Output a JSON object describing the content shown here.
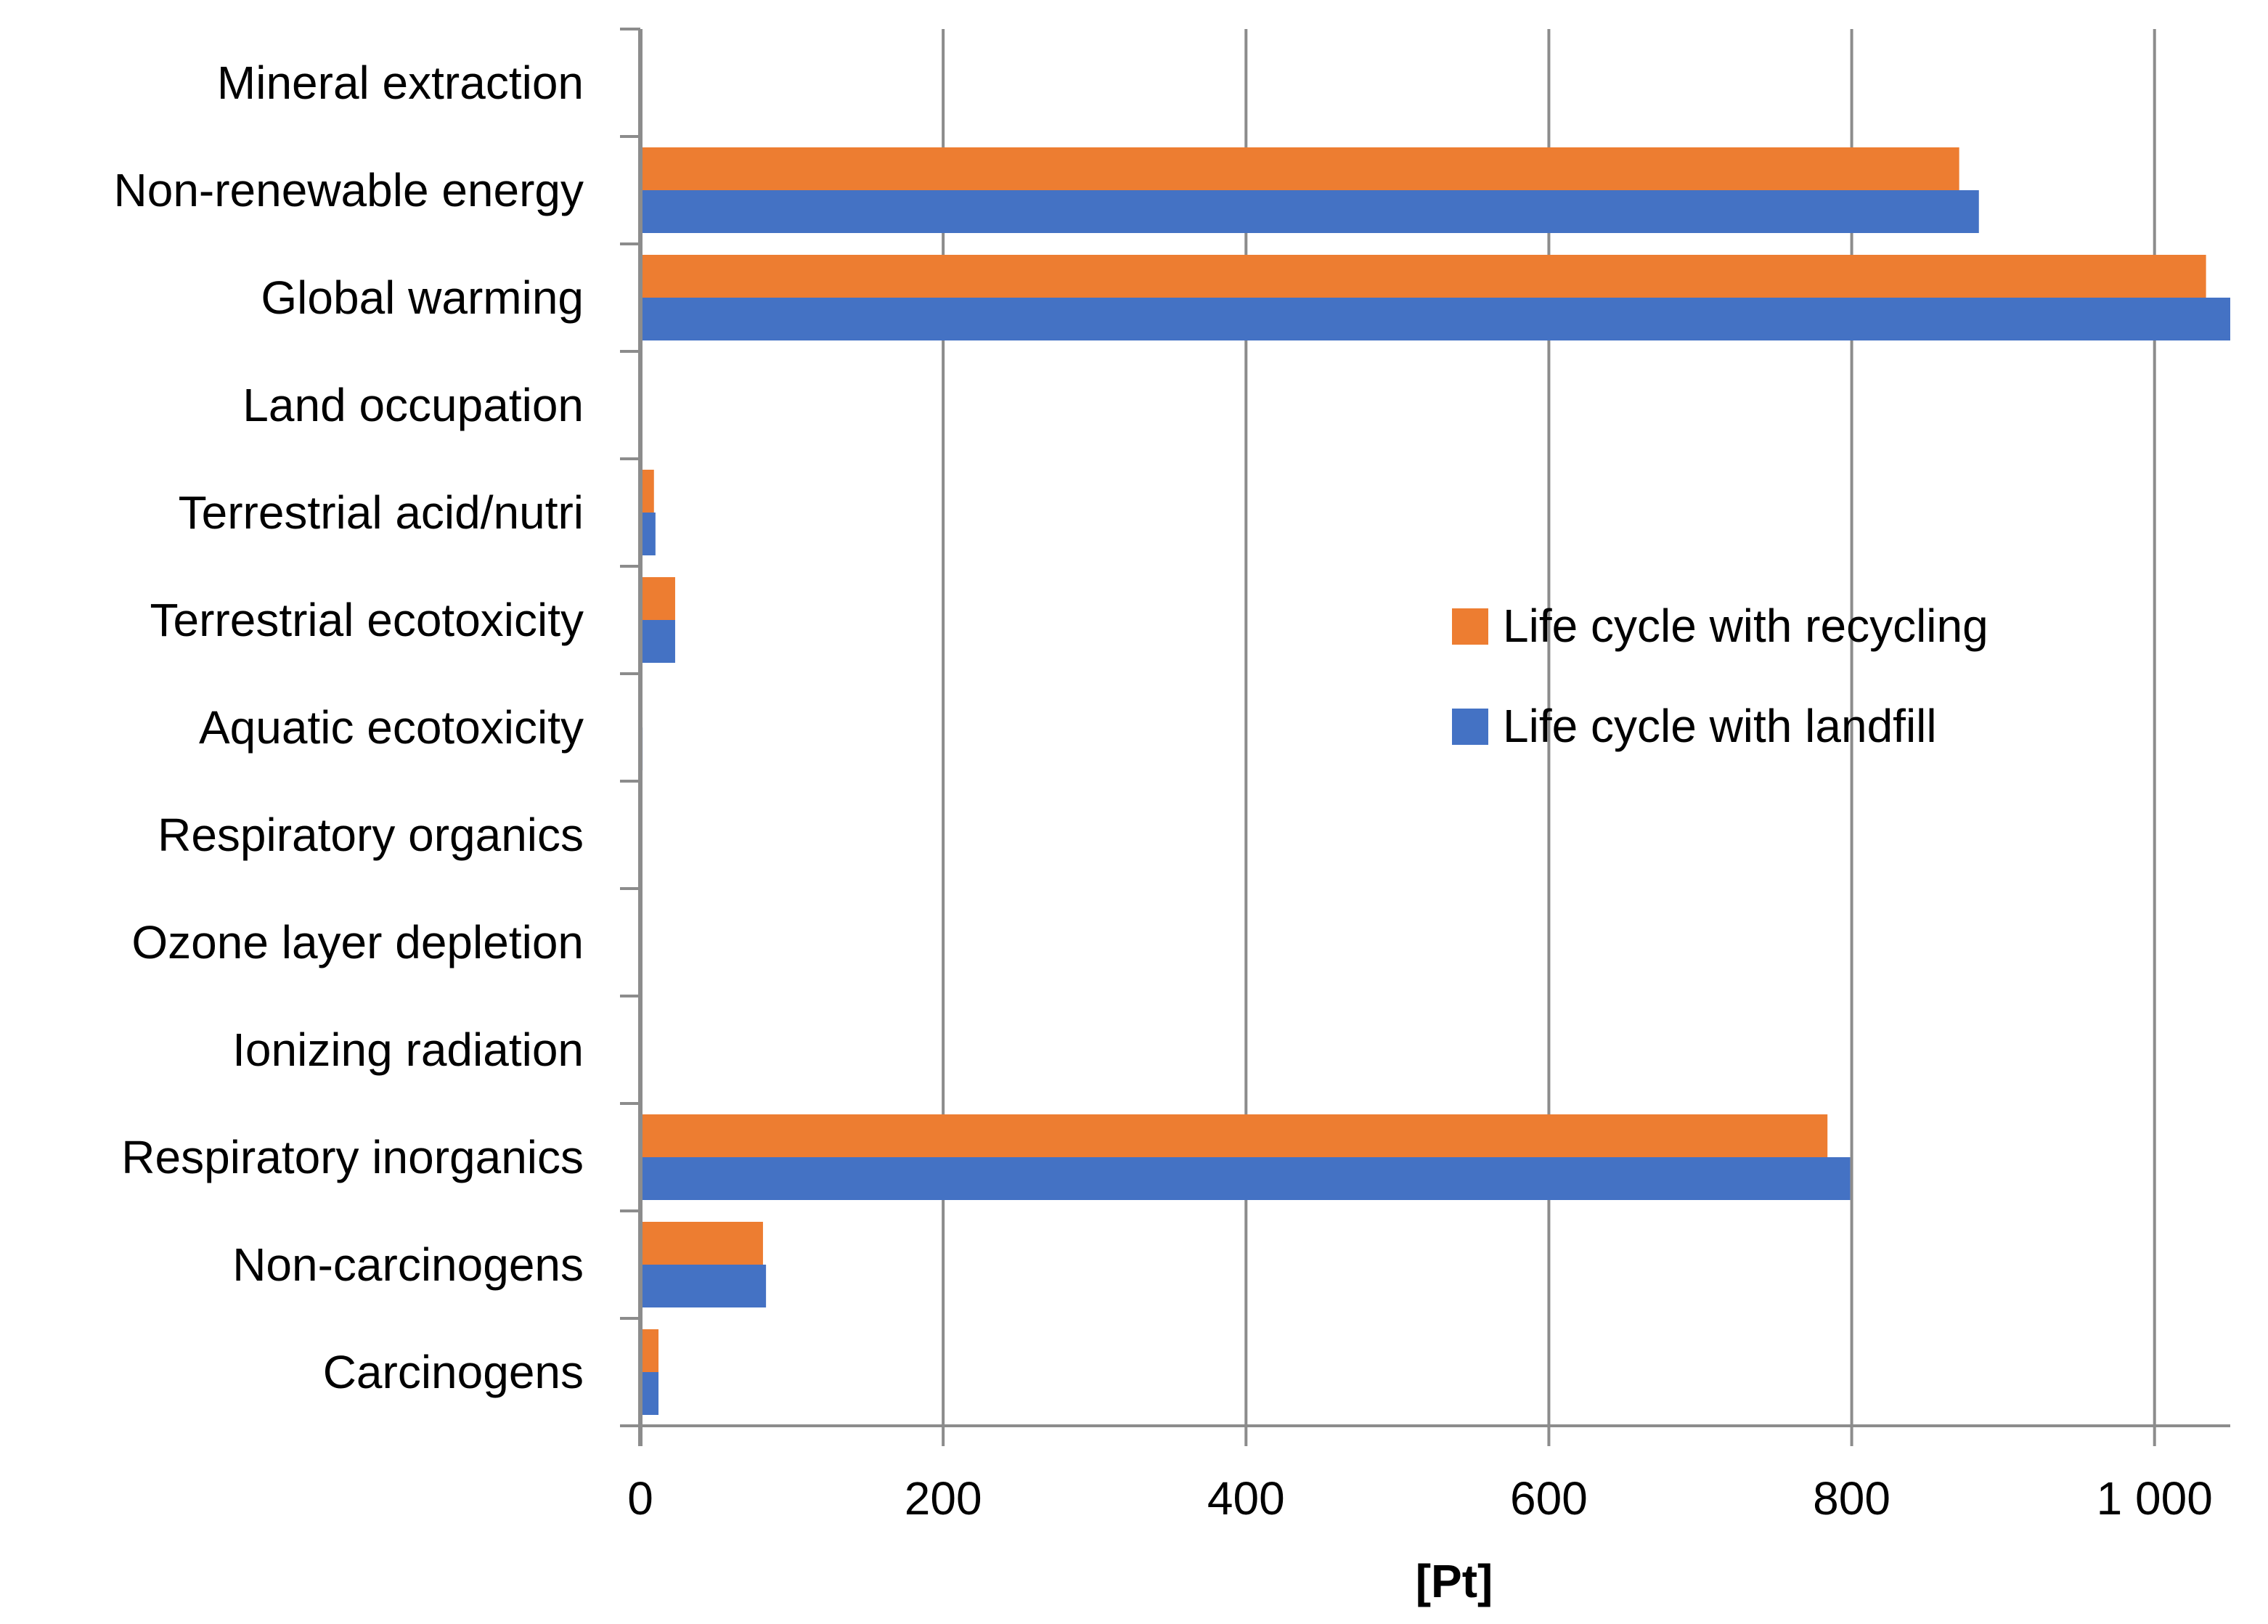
{
  "chart_data": {
    "type": "bar",
    "orientation": "horizontal",
    "title": "",
    "xlabel": "[Pt]",
    "ylabel": "",
    "xlim": [
      0,
      1050
    ],
    "xticks": [
      0,
      200,
      400,
      600,
      800,
      1000
    ],
    "xtick_labels": [
      "0",
      "200",
      "400",
      "600",
      "800",
      "1 000"
    ],
    "grid": "vertical",
    "legend_position": "center-right",
    "categories": [
      "Mineral extraction",
      "Non-renewable energy",
      "Global warming",
      "Land occupation",
      "Terrestrial acid/nutri",
      "Terrestrial ecotoxicity",
      "Aquatic ecotoxicity",
      "Respiratory organics",
      "Ozone layer depletion",
      "Ionizing radiation",
      "Respiratory inorganics",
      "Non-carcinogens",
      "Carcinogens"
    ],
    "series": [
      {
        "name": "Life cycle with recycling",
        "color": "#ED7D31",
        "values": [
          1,
          871,
          1034,
          0,
          9,
          23,
          0.5,
          0,
          0,
          0.3,
          784,
          81,
          12
        ]
      },
      {
        "name": "Life cycle with landfill",
        "color": "#4472C4",
        "values": [
          1,
          884,
          1050,
          0,
          10,
          23,
          1.5,
          0,
          0,
          1,
          799,
          83,
          12
        ]
      }
    ]
  }
}
